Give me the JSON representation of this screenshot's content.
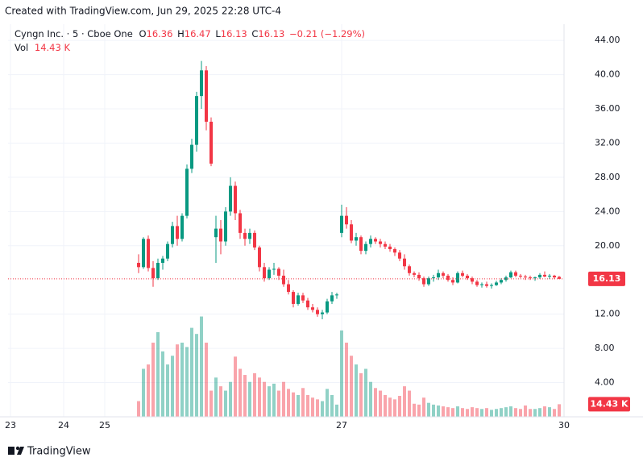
{
  "header": {
    "created": "Created with TradingView.com, Jun 29, 2025 22:28 UTC-4"
  },
  "footer": {
    "brand": "TradingView"
  },
  "chart_data": {
    "type": "candlestick",
    "symbol": "Cyngn Inc. · 5 · Cboe One",
    "ohlc_labels": [
      "O",
      "H",
      "L",
      "C"
    ],
    "change": "−0.21 (−1.29%)",
    "volume_name": "Vol",
    "volume_label": "14.43 K",
    "up_color": "#089981",
    "down_color": "#f23645",
    "grid": true,
    "x": [
      54,
      56,
      58,
      60,
      62,
      64,
      66,
      68,
      70,
      72,
      74,
      76,
      78,
      80,
      82,
      84,
      86,
      88,
      90,
      92,
      94,
      96,
      98,
      100,
      102,
      104,
      106,
      108,
      110,
      112,
      114,
      116,
      118,
      120,
      122,
      124,
      126,
      128,
      130,
      132,
      134,
      136,
      138,
      140,
      142,
      144,
      146,
      148,
      150,
      152,
      154,
      156,
      158,
      160,
      162,
      164,
      166,
      168,
      170,
      172,
      174,
      176,
      178,
      180,
      182,
      184,
      186,
      188,
      190,
      192,
      194,
      196,
      198,
      200,
      202,
      204,
      206,
      208,
      210,
      212,
      214,
      216,
      218,
      220,
      222,
      224,
      226,
      228
    ],
    "open": [
      18,
      17.5,
      20.8,
      17.4,
      16.2,
      18,
      18.5,
      20.2,
      22.3,
      20.8,
      23.5,
      29,
      31.8,
      37.5,
      40.5,
      34.5,
      21,
      22,
      20.5,
      24,
      27,
      23.8,
      21.5,
      20.8,
      21.5,
      19.8,
      17.5,
      16.2,
      17.2,
      17.3,
      16.5,
      15.5,
      14.6,
      13.2,
      14.2,
      13.6,
      12.8,
      12.5,
      12,
      12.2,
      13.5,
      14.2,
      21.5,
      23.5,
      22.5,
      20.6,
      21,
      19.4,
      20.2,
      20.8,
      20.5,
      20.2,
      19.9,
      19.6,
      19.2,
      18.5,
      17.6,
      16.8,
      16.6,
      16.2,
      15.5,
      16.2,
      16.3,
      16.8,
      16.5,
      16,
      15.7,
      16.8,
      16.5,
      16.2,
      15.8,
      15.4,
      15.5,
      15.3,
      15.4,
      15.7,
      16,
      16.3,
      16.9,
      16.5,
      16.4,
      16.3,
      16.2,
      16.3,
      16.6,
      16.4,
      16.5,
      16.36
    ],
    "high": [
      19,
      21,
      21.2,
      18.2,
      18.5,
      18.8,
      20.5,
      22.8,
      23.5,
      23.8,
      29.5,
      32.5,
      38,
      41.6,
      41,
      35,
      23.5,
      23,
      24.5,
      28,
      27.5,
      24.2,
      22,
      22,
      21.8,
      20,
      18,
      17.5,
      18,
      17.5,
      17.2,
      16,
      14.8,
      14.5,
      14.5,
      13.9,
      13.2,
      12.8,
      12.5,
      13.8,
      14.6,
      14.5,
      24.8,
      24.5,
      23,
      21.5,
      21.2,
      20.5,
      21.2,
      21,
      20.8,
      20.5,
      20.2,
      19.8,
      19.5,
      19,
      17.8,
      17,
      16.9,
      16.4,
      16.4,
      16.6,
      17.2,
      17,
      16.7,
      16.3,
      17,
      17.1,
      16.7,
      16.4,
      16,
      15.7,
      15.8,
      15.6,
      15.9,
      16.2,
      16.5,
      17.1,
      17.1,
      16.7,
      16.6,
      16.5,
      16.4,
      16.8,
      17,
      16.7,
      16.6,
      16.47
    ],
    "low": [
      16.8,
      17.3,
      17,
      15.2,
      16,
      17.2,
      18.2,
      19.8,
      20,
      20.5,
      23.2,
      28.5,
      31,
      36,
      33.5,
      29.3,
      18,
      19,
      20,
      23.5,
      23,
      20.8,
      20,
      20.2,
      19.5,
      17,
      15.8,
      16,
      16.6,
      16,
      15.2,
      14.3,
      12.8,
      13,
      13.3,
      12.5,
      12.2,
      11.7,
      11.4,
      12,
      13.2,
      13.8,
      21,
      22,
      20.3,
      20,
      19,
      19,
      19.8,
      20.2,
      19.8,
      19.6,
      19.3,
      18.8,
      18.2,
      17.2,
      16.5,
      16.3,
      15.9,
      15.2,
      15.3,
      15.8,
      16,
      16.2,
      15.8,
      15.4,
      15.6,
      16.3,
      16,
      15.5,
      15.2,
      15.1,
      15.1,
      15,
      15.3,
      15.5,
      15.8,
      16.2,
      16.3,
      16.2,
      16,
      16,
      15.9,
      16.1,
      16.3,
      16.1,
      16.1,
      16.13
    ],
    "close": [
      17.5,
      20.8,
      17.4,
      16.2,
      18,
      18.5,
      20.2,
      22.3,
      20.8,
      23.5,
      29,
      31.8,
      37.5,
      40.5,
      34.5,
      29.6,
      22,
      20.5,
      24,
      27,
      23.8,
      21.5,
      20.8,
      21.5,
      19.8,
      17.5,
      16.2,
      17.2,
      17.3,
      16.5,
      15.5,
      14.6,
      13.2,
      14.2,
      13.6,
      12.8,
      12.5,
      12,
      12.2,
      13.5,
      14.2,
      14.3,
      23.5,
      22.5,
      20.6,
      21,
      19.4,
      20.2,
      20.8,
      20.5,
      20.2,
      19.9,
      19.6,
      19.2,
      18.5,
      17.6,
      16.8,
      16.6,
      16.2,
      15.5,
      16.2,
      16.3,
      16.8,
      16.5,
      16,
      15.7,
      16.8,
      16.5,
      16.2,
      15.8,
      15.4,
      15.5,
      15.3,
      15.4,
      15.7,
      16,
      16.3,
      16.9,
      16.5,
      16.4,
      16.3,
      16.2,
      16.3,
      16.6,
      16.4,
      16.5,
      16.3,
      16.13
    ],
    "volume": [
      18000,
      55000,
      60000,
      85000,
      97000,
      75000,
      60000,
      70000,
      83000,
      85000,
      80000,
      102000,
      95000,
      115000,
      85000,
      30000,
      45000,
      35000,
      30000,
      40000,
      69000,
      55000,
      48000,
      40000,
      50000,
      45000,
      40000,
      35000,
      38000,
      30000,
      40000,
      32000,
      28000,
      25000,
      33000,
      25000,
      22000,
      20000,
      18000,
      32000,
      25000,
      14000,
      99000,
      85000,
      70000,
      60000,
      50000,
      55000,
      40000,
      33000,
      30000,
      25000,
      22000,
      20000,
      24000,
      35000,
      30000,
      15000,
      14000,
      22000,
      16000,
      14000,
      13000,
      12000,
      11000,
      10000,
      12000,
      10000,
      9000,
      11000,
      10000,
      9000,
      10000,
      8000,
      9000,
      10000,
      11000,
      12000,
      10000,
      9000,
      13000,
      9000,
      9000,
      10000,
      12000,
      11000,
      9000,
      14430
    ],
    "xlim": [
      0,
      230
    ],
    "xticks": [
      {
        "value": 1,
        "label": "23"
      },
      {
        "value": 23,
        "label": "24"
      },
      {
        "value": 40,
        "label": "25"
      },
      {
        "value": 138,
        "label": "27"
      },
      {
        "value": 230,
        "label": "30"
      }
    ],
    "ylim": [
      0,
      45.9
    ],
    "yticks": [
      {
        "value": 4,
        "label": "4.00"
      },
      {
        "value": 8,
        "label": "8.00"
      },
      {
        "value": 12,
        "label": "12.00"
      },
      {
        "value": 20,
        "label": "20.00"
      },
      {
        "value": 24,
        "label": "24.00"
      },
      {
        "value": 28,
        "label": "28.00"
      },
      {
        "value": 32,
        "label": "32.00"
      },
      {
        "value": 36,
        "label": "36.00"
      },
      {
        "value": 40,
        "label": "40.00"
      },
      {
        "value": 44,
        "label": "44.00"
      }
    ],
    "y2lim": [
      0,
      450000
    ]
  }
}
